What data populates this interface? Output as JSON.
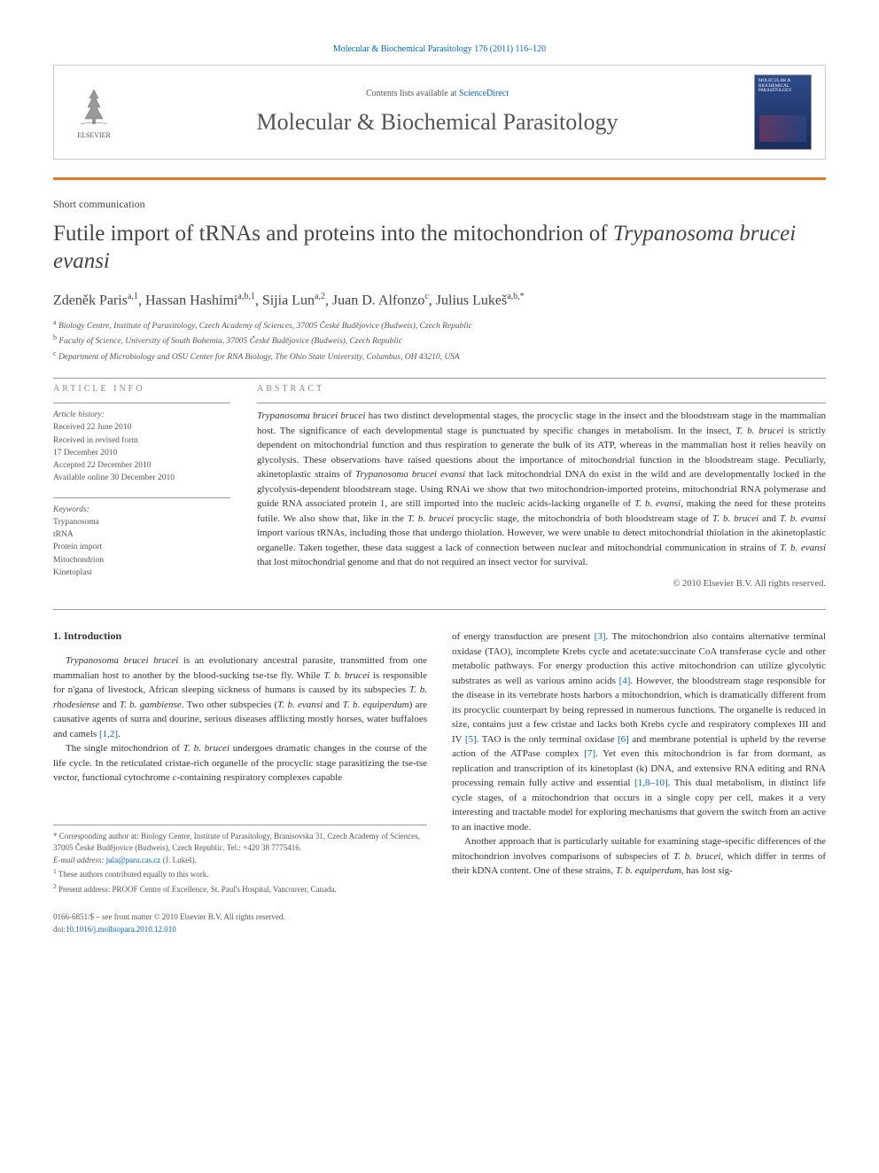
{
  "citation": "Molecular & Biochemical Parasitology 176 (2011) 116–120",
  "header": {
    "contents_prefix": "Contents lists available at ",
    "contents_link": "ScienceDirect",
    "journal": "Molecular & Biochemical Parasitology",
    "publisher": "ELSEVIER",
    "cover_text": "MOLECULAR & BIOCHEMICAL PARASITOLOGY"
  },
  "article_type": "Short communication",
  "title_html": "Futile import of tRNAs and proteins into the mitochondrion of <em>Trypanosoma brucei evansi</em>",
  "authors_html": "Zdeněk Paris<sup>a,1</sup>, Hassan Hashimi<sup>a,b,1</sup>, Sijia Lun<sup>a,2</sup>, Juan D. Alfonzo<sup>c</sup>, Julius Lukeš<sup>a,b,*</sup>",
  "affiliations": {
    "a": "Biology Centre, Institute of Parasitology, Czech Academy of Sciences, 37005 České Budějovice (Budweis), Czech Republic",
    "b": "Faculty of Science, University of South Bohemia, 37005 České Budějovice (Budweis), Czech Republic",
    "c": "Department of Microbiology and OSU Center for RNA Biology, The Ohio State University, Columbus, OH 43210, USA"
  },
  "info": {
    "label": "article info",
    "history_heading": "Article history:",
    "history": [
      "Received 22 June 2010",
      "Received in revised form",
      "17 December 2010",
      "Accepted 22 December 2010",
      "Available online 30 December 2010"
    ],
    "keywords_heading": "Keywords:",
    "keywords": [
      "Trypanosoma",
      "tRNA",
      "Protein import",
      "Mitochondrion",
      "Kinetoplast"
    ]
  },
  "abstract": {
    "label": "abstract",
    "text_html": "<em>Trypanosoma brucei brucei</em> has two distinct developmental stages, the procyclic stage in the insect and the bloodstream stage in the mammalian host. The significance of each developmental stage is punctuated by specific changes in metabolism. In the insect, <em>T. b. brucei</em> is strictly dependent on mitochondrial function and thus respiration to generate the bulk of its ATP, whereas in the mammalian host it relies heavily on glycolysis. These observations have raised questions about the importance of mitochondrial function in the bloodstream stage. Peculiarly, akinetoplastic strains of <em>Trypanosoma brucei evansi</em> that lack mitochondrial DNA do exist in the wild and are developmentally locked in the glycolysis-dependent bloodstream stage. Using RNAi we show that two mitochondrion-imported proteins, mitochondrial RNA polymerase and guide RNA associated protein 1, are still imported into the nucleic acids-lacking organelle of <em>T. b. evansi</em>, making the need for these proteins futile. We also show that, like in the <em>T. b. brucei</em> procyclic stage, the mitochondria of both bloodstream stage of <em>T. b. brucei</em> and <em>T. b. evansi</em> import various tRNAs, including those that undergo thiolation. However, we were unable to detect mitochondrial thiolation in the akinetoplastic organelle. Taken together, these data suggest a lack of connection between nuclear and mitochondrial communication in strains of <em>T. b. evansi</em> that lost mitochondrial genome and that do not required an insect vector for survival.",
    "copyright": "© 2010 Elsevier B.V. All rights reserved."
  },
  "body": {
    "heading": "1. Introduction",
    "col1": [
      "<em>Trypanosoma brucei brucei</em> is an evolutionary ancestral parasite, transmitted from one mammalian host to another by the blood-sucking tse-tse fly. While <em>T. b. brucei</em> is responsible for n'gana of livestock, African sleeping sickness of humans is caused by its subspecies <em>T. b. rhodesiense</em> and <em>T. b. gambiense</em>. Two other subspecies (<em>T. b. evansi</em> and <em>T. b. equiperdum</em>) are causative agents of surra and dourine, serious diseases afflicting mostly horses, water buffaloes and camels <a href='#'>[1,2]</a>.",
      "The single mitochondrion of <em>T. b. brucei</em> undergoes dramatic changes in the course of the life cycle. In the reticulated cristae-rich organelle of the procyclic stage parasitizing the tse-tse vector, functional cytochrome <em>c</em>-containing respiratory complexes capable"
    ],
    "col2": [
      "of energy transduction are present <a href='#'>[3]</a>. The mitochondrion also contains alternative terminal oxidase (TAO), incomplete Krebs cycle and acetate:succinate CoA transferase cycle and other metabolic pathways. For energy production this active mitochondrion can utilize glycolytic substrates as well as various amino acids <a href='#'>[4]</a>. However, the bloodstream stage responsible for the disease in its vertebrate hosts harbors a mitochondrion, which is dramatically different from its procyclic counterpart by being repressed in numerous functions. The organelle is reduced in size, contains just a few cristae and lacks both Krebs cycle and respiratory complexes III and IV <a href='#'>[5]</a>. TAO is the only terminal oxidase <a href='#'>[6]</a> and membrane potential is upheld by the reverse action of the ATPase complex <a href='#'>[7]</a>. Yet even this mitochondrion is far from dormant, as replication and transcription of its kinetoplast (k) DNA, and extensive RNA editing and RNA processing remain fully active and essential <a href='#'>[1,8–10]</a>. This dual metabolism, in distinct life cycle stages, of a mitochondrion that occurs in a single copy per cell, makes it a very interesting and tractable model for exploring mechanisms that govern the switch from an active to an inactive mode.",
      "Another approach that is particularly suitable for examining stage-specific differences of the mitochondrion involves comparisons of subspecies of <em>T. b. brucei</em>, which differ in terms of their kDNA content. One of these strains, <em>T. b. equiperdum</em>, has lost sig-"
    ]
  },
  "footnotes": {
    "corresponding": "* Corresponding author at: Biology Centre, Institute of Parasitology, Branisovska 31, Czech Academy of Sciences, 37005 České Budějovice (Budweis), Czech Republic. Tel.: +420 38 7775416.",
    "email_label": "E-mail address: ",
    "email": "jula@paru.cas.cz",
    "email_suffix": " (J. Lukeš).",
    "note1": "These authors contributed equally to this work.",
    "note2": "Present address: PROOF Centre of Excellence, St. Paul's Hospital, Vancouver, Canada."
  },
  "footer": {
    "issn": "0166-6851/$ – see front matter © 2010 Elsevier B.V. All rights reserved.",
    "doi_label": "doi:",
    "doi": "10.1016/j.molbiopara.2010.12.010"
  },
  "colors": {
    "link": "#0066cc",
    "orange": "#e87722",
    "cover_top": "#2d4a8a",
    "cover_bottom": "#1a2d5c"
  }
}
